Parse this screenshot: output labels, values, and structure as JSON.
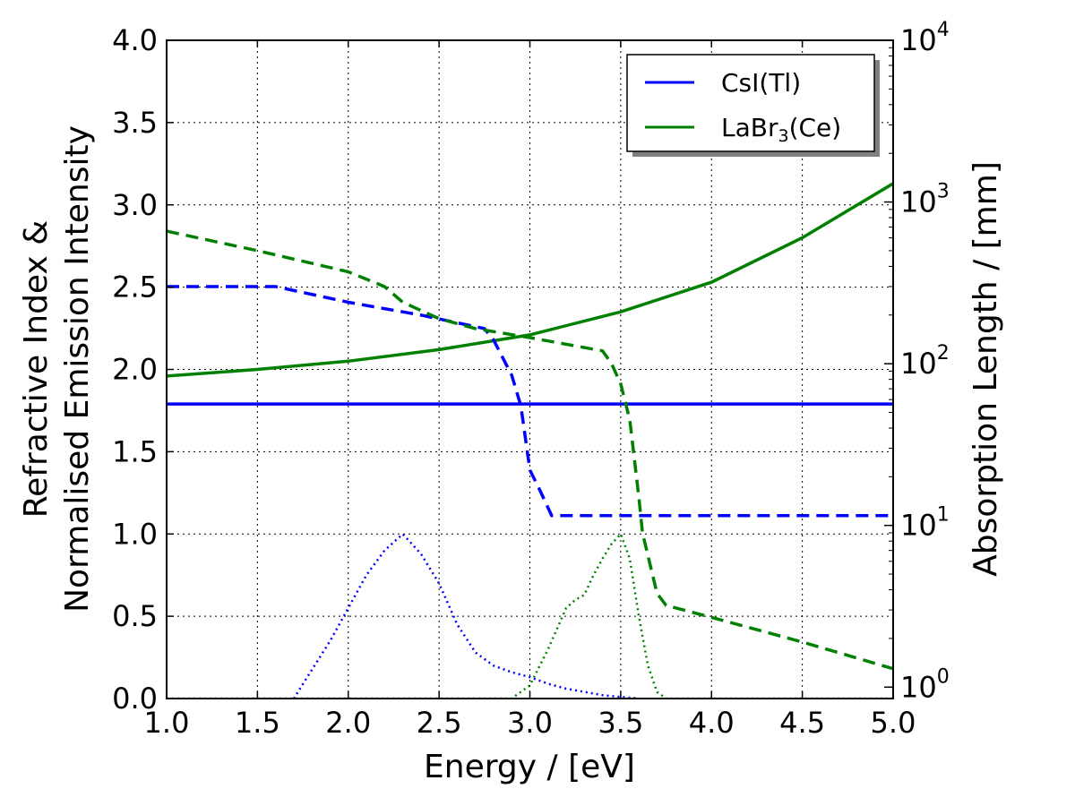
{
  "chart_data": {
    "type": "line",
    "x": {
      "label": "Energy / [eV]",
      "range": [
        1.0,
        5.0
      ],
      "ticks": [
        1.0,
        1.5,
        2.0,
        2.5,
        3.0,
        3.5,
        4.0,
        4.5,
        5.0
      ],
      "tick_labels": [
        "1.0",
        "1.5",
        "2.0",
        "2.5",
        "3.0",
        "3.5",
        "4.0",
        "4.5",
        "5.0"
      ]
    },
    "y_left": {
      "label_line1": "Refractive Index &",
      "label_line2": "Normalised Emission Intensity",
      "range": [
        0.0,
        4.0
      ],
      "ticks": [
        0.0,
        0.5,
        1.0,
        1.5,
        2.0,
        2.5,
        3.0,
        3.5,
        4.0
      ],
      "tick_labels": [
        "0.0",
        "0.5",
        "1.0",
        "1.5",
        "2.0",
        "2.5",
        "3.0",
        "3.5",
        "4.0"
      ]
    },
    "y_right": {
      "label": "Absorption Length / [mm]",
      "scale": "log",
      "range": [
        0.85,
        10000
      ],
      "ticks": [
        1,
        10,
        100,
        1000,
        10000
      ],
      "tick_exponents": [
        "0",
        "1",
        "2",
        "3",
        "4"
      ],
      "tick_base": "10"
    },
    "grid": true,
    "legend": {
      "position": "top-right",
      "entries": [
        {
          "label": "CsI(Tl)",
          "color": "#0000ff"
        },
        {
          "label_main": "LaBr",
          "label_sub": "3",
          "label_tail": "(Ce)",
          "color": "#008000"
        }
      ]
    },
    "series": [
      {
        "name": "CsI(Tl) refractive index",
        "material": "CsI(Tl)",
        "quantity": "refractive index",
        "axis": "left",
        "style": "solid",
        "color": "#0000ff",
        "points": [
          [
            1.0,
            1.79
          ],
          [
            5.0,
            1.79
          ]
        ]
      },
      {
        "name": "LaBr3(Ce) refractive index",
        "material": "LaBr3(Ce)",
        "quantity": "refractive index",
        "axis": "left",
        "style": "solid",
        "color": "#008000",
        "points": [
          [
            1.0,
            1.96
          ],
          [
            1.5,
            2.0
          ],
          [
            2.0,
            2.05
          ],
          [
            2.5,
            2.12
          ],
          [
            3.0,
            2.21
          ],
          [
            3.5,
            2.35
          ],
          [
            4.0,
            2.53
          ],
          [
            4.5,
            2.8
          ],
          [
            5.0,
            3.13
          ]
        ]
      },
      {
        "name": "CsI(Tl) absorption length",
        "material": "CsI(Tl)",
        "quantity": "absorption length (mm)",
        "axis": "right",
        "style": "dashed",
        "color": "#0000ff",
        "points": [
          [
            1.0,
            300
          ],
          [
            1.6,
            300
          ],
          [
            2.0,
            240
          ],
          [
            2.4,
            200
          ],
          [
            2.75,
            165
          ],
          [
            2.8,
            140
          ],
          [
            2.9,
            85
          ],
          [
            2.95,
            55
          ],
          [
            3.0,
            22
          ],
          [
            3.05,
            17
          ],
          [
            3.12,
            11.5
          ],
          [
            5.0,
            11.5
          ]
        ]
      },
      {
        "name": "LaBr3(Ce) absorption length",
        "material": "LaBr3(Ce)",
        "quantity": "absorption length (mm)",
        "axis": "right",
        "style": "dashed",
        "color": "#008000",
        "points": [
          [
            1.0,
            660
          ],
          [
            1.5,
            500
          ],
          [
            2.0,
            370
          ],
          [
            2.2,
            300
          ],
          [
            2.3,
            240
          ],
          [
            2.5,
            190
          ],
          [
            2.7,
            165
          ],
          [
            3.0,
            145
          ],
          [
            3.4,
            120
          ],
          [
            3.45,
            100
          ],
          [
            3.5,
            75
          ],
          [
            3.55,
            45
          ],
          [
            3.6,
            15
          ],
          [
            3.62,
            9
          ],
          [
            3.7,
            3.8
          ],
          [
            3.75,
            3.2
          ],
          [
            4.0,
            2.7
          ],
          [
            4.5,
            1.9
          ],
          [
            5.0,
            1.3
          ]
        ]
      },
      {
        "name": "CsI(Tl) emission",
        "material": "CsI(Tl)",
        "quantity": "normalised emission intensity",
        "axis": "left",
        "style": "dotted",
        "color": "#0000ff",
        "points": [
          [
            1.7,
            0.0
          ],
          [
            1.9,
            0.35
          ],
          [
            2.0,
            0.55
          ],
          [
            2.1,
            0.75
          ],
          [
            2.2,
            0.9
          ],
          [
            2.3,
            1.0
          ],
          [
            2.4,
            0.88
          ],
          [
            2.5,
            0.7
          ],
          [
            2.6,
            0.45
          ],
          [
            2.7,
            0.28
          ],
          [
            2.8,
            0.2
          ],
          [
            2.9,
            0.16
          ],
          [
            3.0,
            0.13
          ],
          [
            3.1,
            0.09
          ],
          [
            3.2,
            0.06
          ],
          [
            3.3,
            0.04
          ],
          [
            3.4,
            0.02
          ],
          [
            3.5,
            0.01
          ],
          [
            3.6,
            0.0
          ]
        ]
      },
      {
        "name": "LaBr3(Ce) emission",
        "material": "LaBr3(Ce)",
        "quantity": "normalised emission intensity",
        "axis": "left",
        "style": "dotted",
        "color": "#008000",
        "points": [
          [
            1.0,
            0.0
          ],
          [
            2.9,
            0.0
          ],
          [
            3.0,
            0.08
          ],
          [
            3.1,
            0.3
          ],
          [
            3.2,
            0.55
          ],
          [
            3.25,
            0.6
          ],
          [
            3.3,
            0.63
          ],
          [
            3.35,
            0.75
          ],
          [
            3.4,
            0.85
          ],
          [
            3.45,
            0.94
          ],
          [
            3.5,
            1.0
          ],
          [
            3.55,
            0.85
          ],
          [
            3.6,
            0.5
          ],
          [
            3.65,
            0.2
          ],
          [
            3.7,
            0.04
          ],
          [
            3.75,
            0.0
          ],
          [
            5.0,
            0.0
          ]
        ]
      }
    ]
  }
}
